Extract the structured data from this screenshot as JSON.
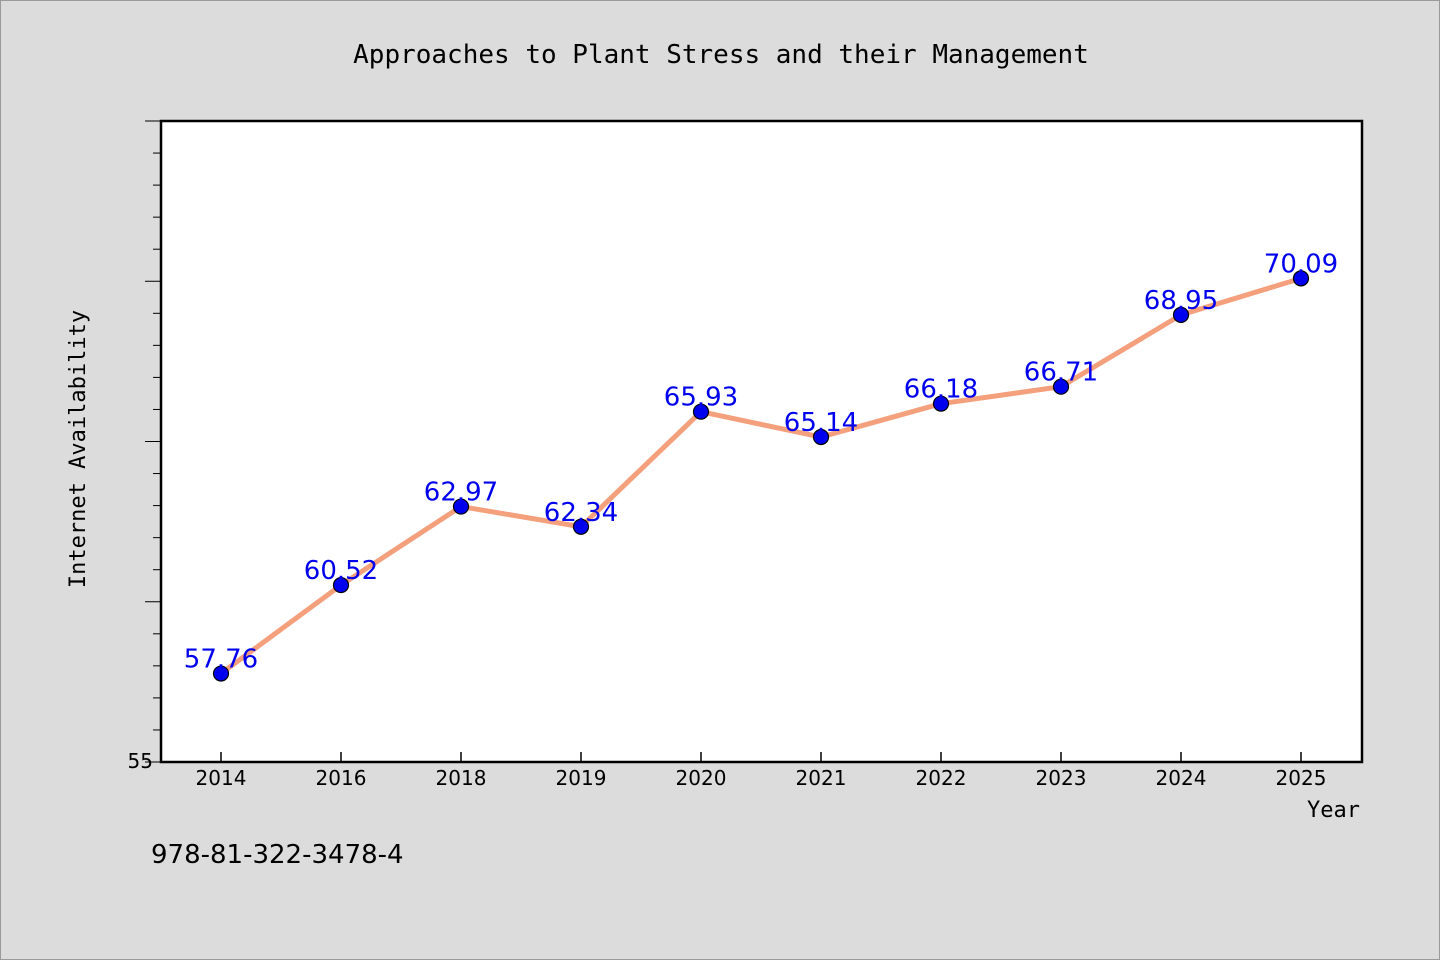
{
  "chart_data": {
    "type": "line",
    "title": "Approaches to Plant Stress and their Management",
    "xlabel": "Year",
    "ylabel": "Internet Availability",
    "categories": [
      "2014",
      "2016",
      "2018",
      "2019",
      "2020",
      "2021",
      "2022",
      "2023",
      "2024",
      "2025"
    ],
    "series": [
      {
        "values": [
          57.76,
          60.52,
          62.97,
          62.34,
          65.93,
          65.14,
          66.18,
          66.71,
          68.95,
          70.09
        ],
        "labels": [
          "57.76",
          "60.52",
          "62.97",
          "62.34",
          "65.93",
          "65.14",
          "66.18",
          "66.71",
          "68.95",
          "70.09"
        ]
      }
    ],
    "ylim": [
      55,
      75
    ],
    "y_tick_labels": [
      "55"
    ],
    "grid": false,
    "legend": "none",
    "line_color": "#f4a07c",
    "marker_color": "#0000ee",
    "label_color": "#0000ee"
  },
  "footer": {
    "isbn": "978-81-322-3478-4"
  }
}
